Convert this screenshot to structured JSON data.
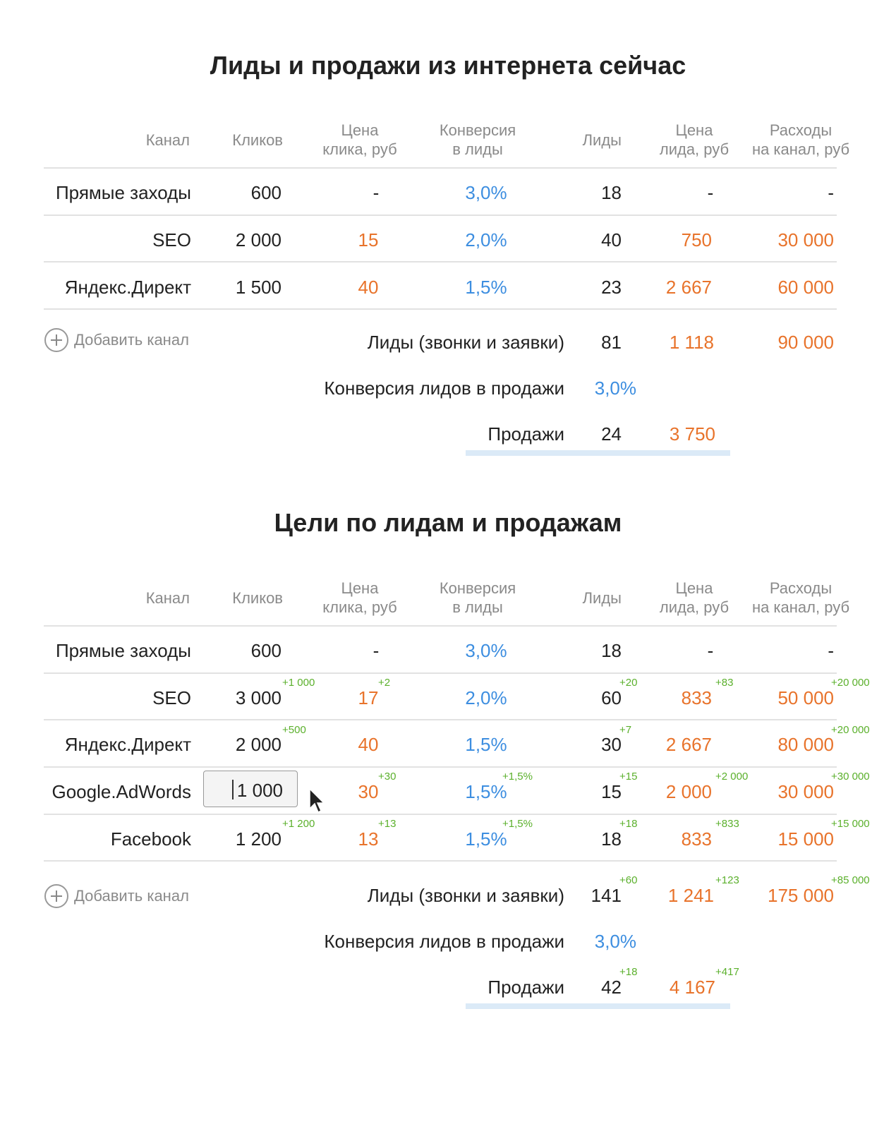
{
  "headers": {
    "channel": "Канал",
    "clicks": "Кликов",
    "click_price_1": "Цена",
    "click_price_2": "клика, руб",
    "conversion_1": "Конверсия",
    "conversion_2": "в лиды",
    "leads": "Лиды",
    "lead_price_1": "Цена",
    "lead_price_2": "лида, руб",
    "spend_1": "Расходы",
    "spend_2": "на канал, руб"
  },
  "now": {
    "title": "Лиды и продажи из интернета сейчас",
    "rows": [
      {
        "channel": "Прямые заходы",
        "clicks": "600",
        "cpc": "-",
        "conv": "3,0%",
        "leads": "18",
        "cpl": "-",
        "spend": "-"
      },
      {
        "channel": "SEO",
        "clicks": "2 000",
        "cpc": "15",
        "conv": "2,0%",
        "leads": "40",
        "cpl": "750",
        "spend": "30 000"
      },
      {
        "channel": "Яндекс.Директ",
        "clicks": "1 500",
        "cpc": "40",
        "conv": "1,5%",
        "leads": "23",
        "cpl": "2 667",
        "spend": "60 000"
      }
    ],
    "add_channel": "Добавить канал",
    "totals": {
      "leads_label": "Лиды (звонки и заявки)",
      "leads": "81",
      "cpl": "1 118",
      "spend": "90 000",
      "conv_label": "Конверсия лидов в продажи",
      "conv": "3,0%",
      "sales_label": "Продажи",
      "sales": "24",
      "cps": "3 750"
    }
  },
  "goals": {
    "title": "Цели по лидам и продажам",
    "rows": [
      {
        "channel": "Прямые заходы",
        "clicks": "600",
        "cpc": "-",
        "conv": "3,0%",
        "leads": "18",
        "cpl": "-",
        "spend": "-",
        "d_clicks": "",
        "d_cpc": "",
        "d_conv": "",
        "d_leads": "",
        "d_cpl": "",
        "d_spend": ""
      },
      {
        "channel": "SEO",
        "clicks": "3 000",
        "cpc": "17",
        "conv": "2,0%",
        "leads": "60",
        "cpl": "833",
        "spend": "50 000",
        "d_clicks": "+1 000",
        "d_cpc": "+2",
        "d_conv": "",
        "d_leads": "+20",
        "d_cpl": "+83",
        "d_spend": "+20 000"
      },
      {
        "channel": "Яндекс.Директ",
        "clicks": "2 000",
        "cpc": "40",
        "conv": "1,5%",
        "leads": "30",
        "cpl": "2 667",
        "spend": "80 000",
        "d_clicks": "+500",
        "d_cpc": "",
        "d_conv": "",
        "d_leads": "+7",
        "d_cpl": "",
        "d_spend": "+20 000"
      },
      {
        "channel": "Google.AdWords",
        "clicks": "1 000",
        "cpc": "30",
        "conv": "1,5%",
        "leads": "15",
        "cpl": "2 000",
        "spend": "30 000",
        "d_clicks": "",
        "d_cpc": "+30",
        "d_conv": "+1,5%",
        "d_leads": "+15",
        "d_cpl": "+2 000",
        "d_spend": "+30 000"
      },
      {
        "channel": "Facebook",
        "clicks": "1 200",
        "cpc": "13",
        "conv": "1,5%",
        "leads": "18",
        "cpl": "833",
        "spend": "15 000",
        "d_clicks": "+1 200",
        "d_cpc": "+13",
        "d_conv": "+1,5%",
        "d_leads": "+18",
        "d_cpl": "+833",
        "d_spend": "+15 000"
      }
    ],
    "add_channel": "Добавить канал",
    "totals": {
      "leads_label": "Лиды (звонки и заявки)",
      "leads": "141",
      "cpl": "1 241",
      "spend": "175 000",
      "d_leads": "+60",
      "d_cpl": "+123",
      "d_spend": "+85 000",
      "conv_label": "Конверсия лидов в продажи",
      "conv": "3,0%",
      "sales_label": "Продажи",
      "sales": "42",
      "cps": "4 167",
      "d_sales": "+18",
      "d_cps": "+417"
    }
  },
  "colors": {
    "orange": "#e8732b",
    "blue": "#3d8ee0",
    "green": "#5bb02c",
    "divider": "#e2e2e2",
    "underline": "#dbeaf7"
  }
}
